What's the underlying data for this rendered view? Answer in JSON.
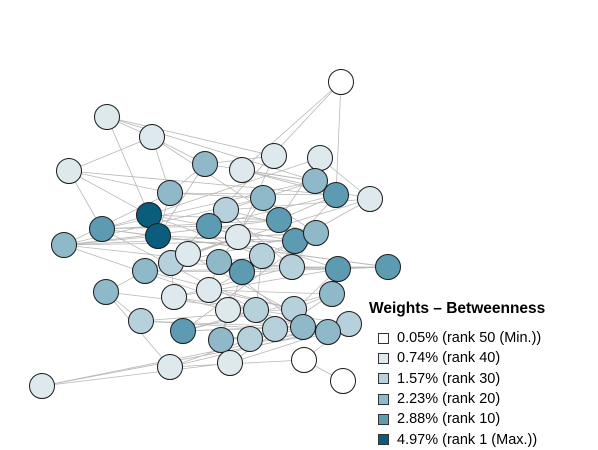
{
  "legend": {
    "title": "Weights – Betweenness",
    "items": [
      {
        "label": "0.05% (rank 50 (Min.))",
        "color": "#ffffff"
      },
      {
        "label": "0.74% (rank 40)",
        "color": "#dde9ed"
      },
      {
        "label": "1.57% (rank 30)",
        "color": "#b6d1dc"
      },
      {
        "label": "2.23% (rank 20)",
        "color": "#8fb8c9"
      },
      {
        "label": "2.88% (rank 10)",
        "color": "#5d9bb3"
      },
      {
        "label": "4.97% (rank 1 (Max.))",
        "color": "#0a5d7c"
      }
    ]
  },
  "nodes": [
    {
      "tier": 0
    },
    {
      "tier": 1
    },
    {
      "tier": 1
    },
    {
      "tier": 1
    },
    {
      "tier": 1
    },
    {
      "tier": 1
    },
    {
      "tier": 3
    },
    {
      "tier": 1
    },
    {
      "tier": 3
    },
    {
      "tier": 4
    },
    {
      "tier": 3
    },
    {
      "tier": 1
    },
    {
      "tier": 3
    },
    {
      "tier": 2
    },
    {
      "tier": 5
    },
    {
      "tier": 4
    },
    {
      "tier": 4
    },
    {
      "tier": 4
    },
    {
      "tier": 5
    },
    {
      "tier": 1
    },
    {
      "tier": 4
    },
    {
      "tier": 3
    },
    {
      "tier": 3
    },
    {
      "tier": 2
    },
    {
      "tier": 1
    },
    {
      "tier": 2
    },
    {
      "tier": 3
    },
    {
      "tier": 2
    },
    {
      "tier": 4
    },
    {
      "tier": 4
    },
    {
      "tier": 3
    },
    {
      "tier": 4
    },
    {
      "tier": 1
    },
    {
      "tier": 1
    },
    {
      "tier": 3
    },
    {
      "tier": 3
    },
    {
      "tier": 2
    },
    {
      "tier": 2
    },
    {
      "tier": 1
    },
    {
      "tier": 2
    },
    {
      "tier": 3
    },
    {
      "tier": 4
    },
    {
      "tier": 2
    },
    {
      "tier": 2
    },
    {
      "tier": 3
    },
    {
      "tier": 2
    },
    {
      "tier": 3
    },
    {
      "tier": 1
    },
    {
      "tier": 1
    },
    {
      "tier": 0
    },
    {
      "tier": 1
    },
    {
      "tier": 0
    }
  ],
  "edges": [
    [
      0,
      7
    ],
    [
      0,
      9
    ],
    [
      0,
      23
    ],
    [
      1,
      2
    ],
    [
      1,
      8
    ],
    [
      1,
      14
    ],
    [
      2,
      3
    ],
    [
      2,
      6
    ],
    [
      2,
      10
    ],
    [
      3,
      14
    ],
    [
      3,
      9
    ],
    [
      4,
      14
    ],
    [
      4,
      15
    ],
    [
      5,
      6
    ],
    [
      5,
      19
    ],
    [
      6,
      10
    ],
    [
      7,
      8
    ],
    [
      7,
      11
    ],
    [
      7,
      9
    ],
    [
      8,
      12
    ],
    [
      8,
      16
    ],
    [
      9,
      10
    ],
    [
      9,
      17
    ],
    [
      10,
      12
    ],
    [
      10,
      18
    ],
    [
      11,
      20
    ],
    [
      11,
      24
    ],
    [
      12,
      13
    ],
    [
      12,
      21
    ],
    [
      13,
      22
    ],
    [
      14,
      15
    ],
    [
      14,
      16
    ],
    [
      14,
      20
    ],
    [
      15,
      16
    ],
    [
      15,
      21
    ],
    [
      16,
      17
    ],
    [
      16,
      18
    ],
    [
      17,
      19
    ],
    [
      17,
      22
    ],
    [
      18,
      21
    ],
    [
      18,
      20
    ],
    [
      19,
      23
    ],
    [
      19,
      24
    ],
    [
      20,
      21
    ],
    [
      20,
      25
    ],
    [
      21,
      22
    ],
    [
      21,
      26
    ],
    [
      22,
      23
    ],
    [
      22,
      27
    ],
    [
      23,
      28
    ],
    [
      24,
      30
    ],
    [
      25,
      26
    ],
    [
      25,
      31
    ],
    [
      26,
      28
    ],
    [
      26,
      32
    ],
    [
      27,
      29
    ],
    [
      28,
      29
    ],
    [
      28,
      33
    ],
    [
      29,
      30
    ],
    [
      29,
      31
    ],
    [
      30,
      31
    ],
    [
      30,
      34
    ],
    [
      31,
      32
    ],
    [
      32,
      35
    ],
    [
      33,
      36
    ],
    [
      34,
      36
    ],
    [
      34,
      39
    ],
    [
      35,
      37
    ],
    [
      36,
      38
    ],
    [
      37,
      39
    ],
    [
      38,
      42
    ],
    [
      39,
      40
    ],
    [
      40,
      41
    ],
    [
      41,
      43
    ],
    [
      42,
      45
    ],
    [
      43,
      44
    ],
    [
      44,
      46
    ],
    [
      45,
      47
    ],
    [
      46,
      48
    ],
    [
      47,
      49
    ],
    [
      48,
      50
    ],
    [
      49,
      51
    ],
    [
      2,
      15
    ],
    [
      3,
      16
    ],
    [
      9,
      20
    ],
    [
      10,
      21
    ],
    [
      12,
      26
    ],
    [
      16,
      29
    ],
    [
      20,
      31
    ],
    [
      21,
      40
    ],
    [
      13,
      27
    ],
    [
      24,
      46
    ],
    [
      6,
      18
    ],
    [
      18,
      29
    ],
    [
      26,
      40
    ],
    [
      31,
      44
    ],
    [
      22,
      41
    ],
    [
      28,
      42
    ],
    [
      25,
      36
    ],
    [
      36,
      43
    ],
    [
      43,
      50
    ],
    [
      50,
      46
    ],
    [
      44,
      38
    ],
    [
      35,
      41
    ],
    [
      15,
      9
    ],
    [
      8,
      6
    ],
    [
      4,
      11
    ],
    [
      1,
      5
    ],
    [
      3,
      10
    ],
    [
      19,
      22
    ],
    [
      27,
      33
    ],
    [
      33,
      38
    ],
    [
      39,
      42
    ],
    [
      30,
      37
    ],
    [
      17,
      28
    ],
    [
      12,
      22
    ],
    [
      14,
      25
    ],
    [
      32,
      37
    ],
    [
      41,
      36
    ],
    [
      40,
      44
    ],
    [
      45,
      42
    ],
    [
      47,
      43
    ],
    [
      48,
      44
    ],
    [
      11,
      13
    ],
    [
      16,
      36
    ],
    [
      34,
      47
    ],
    [
      35,
      48
    ],
    [
      49,
      43
    ],
    [
      23,
      33
    ]
  ]
}
